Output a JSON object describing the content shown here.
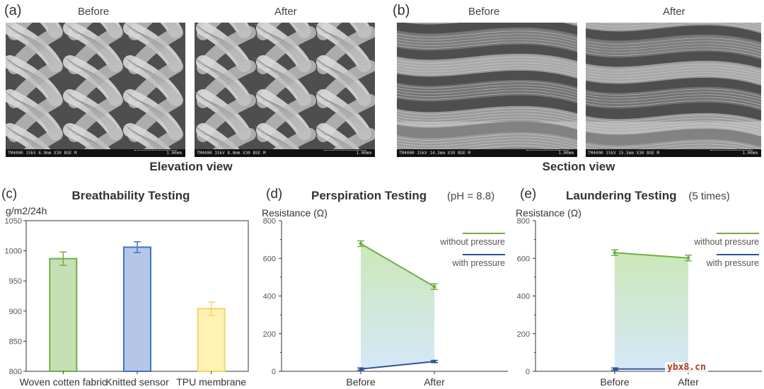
{
  "top_panels": [
    {
      "letter": "(a)",
      "view_caption": "Elevation view",
      "images": [
        {
          "caption": "Before",
          "scale_text": "1.00mm",
          "info": "TM4000 15kV 6.9mm X30 BSE M"
        },
        {
          "caption": "After",
          "scale_text": "1.00mm",
          "info": "TM4000 15kV 8.0mm X30 BSE M"
        }
      ]
    },
    {
      "letter": "(b)",
      "view_caption": "Section view",
      "images": [
        {
          "caption": "Before",
          "scale_text": "1.00mm",
          "info": "TM4000 15kV 14.3mm X30 BSE M"
        },
        {
          "caption": "After",
          "scale_text": "1.00mm",
          "info": "TM4000 15kV 15.5mm X30 BSE M"
        }
      ]
    }
  ],
  "watermark": "ybx8.cn",
  "chart_data": [
    {
      "letter": "(c)",
      "type": "bar",
      "title": "Breathability Testing",
      "ylabel": "g/m2/24h",
      "ylim": [
        800,
        1050
      ],
      "yticks": [
        800,
        850,
        900,
        950,
        1000,
        1050
      ],
      "categories": [
        "Woven cotten fabric",
        "Knitted sensor",
        "TPU membrane"
      ],
      "values": [
        987,
        1006,
        904
      ],
      "errors": [
        11,
        9,
        11
      ],
      "fill_colors": [
        "#c5e0b4",
        "#b4c7e7",
        "#fff2b3"
      ],
      "stroke_colors": [
        "#70ad47",
        "#4472c4",
        "#f2d46b"
      ]
    },
    {
      "letter": "(d)",
      "type": "line",
      "title": "Perspiration Testing",
      "title_suffix": "(pH = 8.8)",
      "ylabel": "Resistance (Ω)",
      "ylim": [
        0,
        800
      ],
      "yticks": [
        0,
        200,
        400,
        600,
        800
      ],
      "categories": [
        "Before",
        "After"
      ],
      "series": [
        {
          "name": "without pressure",
          "values": [
            678,
            450
          ],
          "errors": [
            15,
            15
          ],
          "color": "#70ad47"
        },
        {
          "name": "with pressure",
          "values": [
            12,
            52
          ],
          "errors": [
            6,
            6
          ],
          "color": "#2f5597"
        }
      ],
      "legend": "top-right"
    },
    {
      "letter": "(e)",
      "type": "line",
      "title": "Laundering Testing",
      "title_suffix": "(5 times)",
      "ylabel": "Resistance (Ω)",
      "ylim": [
        0,
        800
      ],
      "yticks": [
        0,
        200,
        400,
        600,
        800
      ],
      "categories": [
        "Before",
        "After"
      ],
      "series": [
        {
          "name": "without pressure",
          "values": [
            630,
            602
          ],
          "errors": [
            15,
            15
          ],
          "color": "#70ad47"
        },
        {
          "name": "with pressure",
          "values": [
            12,
            12
          ],
          "errors": [
            6,
            6
          ],
          "color": "#2f5597"
        }
      ],
      "legend": "top-right"
    }
  ]
}
